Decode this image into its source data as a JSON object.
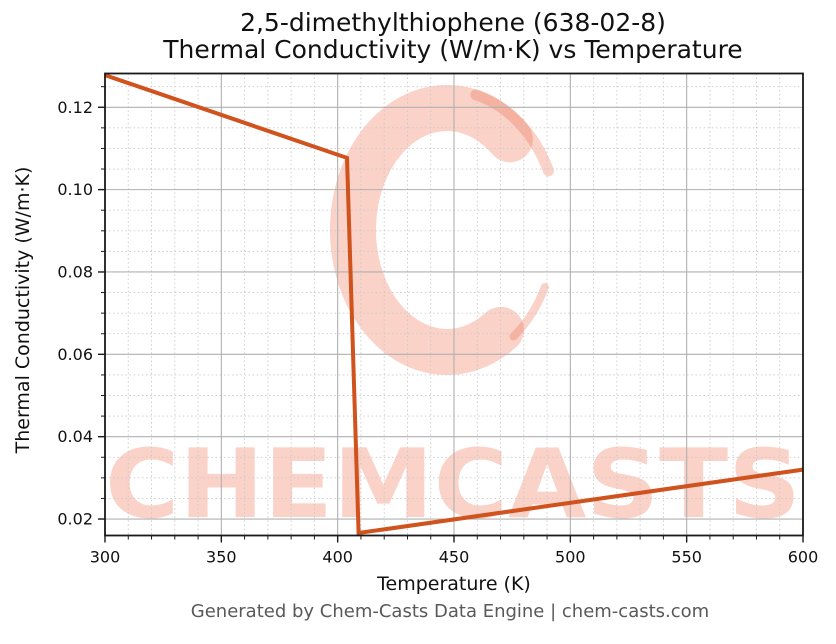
{
  "page": {
    "background": "#ffffff"
  },
  "header": {
    "title_line1": "2,5-dimethylthiophene (638-02-8)",
    "title_line2": "Thermal Conductivity (W/m·K) vs Temperature"
  },
  "watermark": {
    "text": "CHEMCASTS",
    "color": "#ef6a4a",
    "opacity": 0.3
  },
  "footer": {
    "text": "Generated by Chem-Casts Data Engine | chem-casts.com",
    "color": "#595959"
  },
  "chart_data": {
    "type": "line",
    "title": "2,5-dimethylthiophene (638-02-8) — Thermal Conductivity (W/m·K) vs Temperature",
    "xlabel": "Temperature (K)",
    "ylabel": "Thermal Conductivity (W/m·K)",
    "xlim": [
      300,
      600
    ],
    "ylim": [
      0.016,
      0.1282
    ],
    "x_major_ticks": [
      300,
      350,
      400,
      450,
      500,
      550,
      600
    ],
    "x_tick_labels": [
      "300",
      "350",
      "400",
      "450",
      "500",
      "550",
      "600"
    ],
    "x_minor_ticks": [
      310,
      320,
      330,
      340,
      360,
      370,
      380,
      390,
      410,
      420,
      430,
      440,
      460,
      470,
      480,
      490,
      510,
      520,
      530,
      540,
      560,
      570,
      580,
      590
    ],
    "y_major_ticks": [
      0.02,
      0.04,
      0.06,
      0.08,
      0.1,
      0.12
    ],
    "y_tick_labels": [
      "0.02",
      "0.04",
      "0.06",
      "0.08",
      "0.10",
      "0.12"
    ],
    "y_minor_ticks": [
      0.025,
      0.03,
      0.035,
      0.045,
      0.05,
      0.055,
      0.065,
      0.07,
      0.075,
      0.085,
      0.09,
      0.095,
      0.105,
      0.11,
      0.115,
      0.125
    ],
    "grid": {
      "major": true,
      "minor": true,
      "major_color": "#b0b0b0",
      "minor_color": "#c9c9c9"
    },
    "axis_color": "#1a1a1a",
    "legend": "none",
    "series": [
      {
        "name": "Thermal conductivity",
        "color": "#d0521d",
        "points": [
          [
            300,
            0.1278
          ],
          [
            404,
            0.1077
          ],
          [
            409,
            0.0166
          ],
          [
            600,
            0.032
          ]
        ],
        "note": "liquid branch declines 300→404 K; sharp phase-change drop 404→409 K; gas branch rises 409→600 K"
      }
    ]
  }
}
